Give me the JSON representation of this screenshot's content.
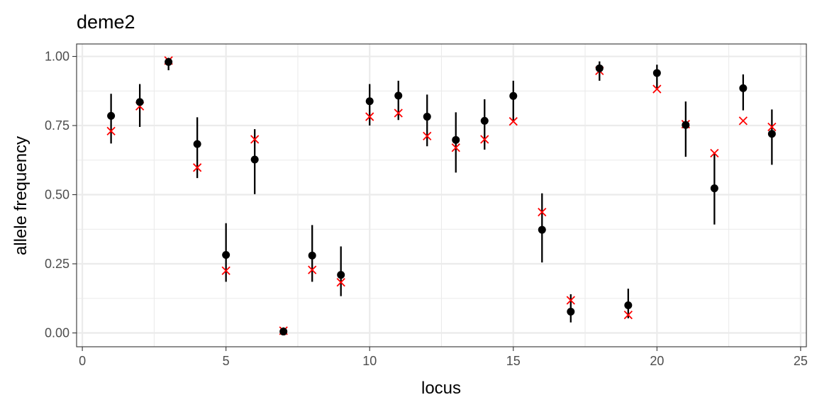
{
  "chart_data": {
    "type": "scatter",
    "title": "deme2",
    "xlabel": "locus",
    "ylabel": "allele frequency",
    "xlim": [
      -0.2,
      25.2
    ],
    "ylim": [
      -0.05,
      1.045
    ],
    "x_ticks": [
      0,
      5,
      10,
      15,
      20,
      25
    ],
    "x_tick_labels": [
      "0",
      "5",
      "10",
      "15",
      "20",
      "25"
    ],
    "y_ticks": [
      0,
      0.25,
      0.5,
      0.75,
      1.0
    ],
    "y_tick_labels": [
      "0.00",
      "0.25",
      "0.50",
      "0.75",
      "1.00"
    ],
    "grid": true,
    "legend": "none",
    "colors": {
      "estimate": "#000000",
      "truth": "#ff0000",
      "grid": "#ebebeb",
      "border": "#333333"
    },
    "series": [
      {
        "kind": "estimate-with-interval",
        "marker": "circle",
        "points": [
          {
            "x": 1,
            "y": 0.785,
            "lo": 0.685,
            "hi": 0.865
          },
          {
            "x": 2,
            "y": 0.835,
            "lo": 0.745,
            "hi": 0.9
          },
          {
            "x": 3,
            "y": 0.98,
            "lo": 0.95,
            "hi": 0.995
          },
          {
            "x": 4,
            "y": 0.683,
            "lo": 0.56,
            "hi": 0.78
          },
          {
            "x": 5,
            "y": 0.282,
            "lo": 0.185,
            "hi": 0.397
          },
          {
            "x": 6,
            "y": 0.627,
            "lo": 0.502,
            "hi": 0.737
          },
          {
            "x": 7,
            "y": 0.005,
            "lo": 0.0,
            "hi": 0.02
          },
          {
            "x": 8,
            "y": 0.28,
            "lo": 0.185,
            "hi": 0.39
          },
          {
            "x": 9,
            "y": 0.21,
            "lo": 0.133,
            "hi": 0.313
          },
          {
            "x": 10,
            "y": 0.838,
            "lo": 0.75,
            "hi": 0.9
          },
          {
            "x": 11,
            "y": 0.858,
            "lo": 0.77,
            "hi": 0.912
          },
          {
            "x": 12,
            "y": 0.782,
            "lo": 0.675,
            "hi": 0.862
          },
          {
            "x": 13,
            "y": 0.698,
            "lo": 0.58,
            "hi": 0.798
          },
          {
            "x": 14,
            "y": 0.767,
            "lo": 0.663,
            "hi": 0.845
          },
          {
            "x": 15,
            "y": 0.857,
            "lo": 0.765,
            "hi": 0.912
          },
          {
            "x": 16,
            "y": 0.373,
            "lo": 0.255,
            "hi": 0.505
          },
          {
            "x": 17,
            "y": 0.077,
            "lo": 0.038,
            "hi": 0.14
          },
          {
            "x": 18,
            "y": 0.957,
            "lo": 0.912,
            "hi": 0.982
          },
          {
            "x": 19,
            "y": 0.1,
            "lo": 0.053,
            "hi": 0.16
          },
          {
            "x": 20,
            "y": 0.94,
            "lo": 0.882,
            "hi": 0.97
          },
          {
            "x": 21,
            "y": 0.752,
            "lo": 0.637,
            "hi": 0.837
          },
          {
            "x": 22,
            "y": 0.523,
            "lo": 0.392,
            "hi": 0.652
          },
          {
            "x": 23,
            "y": 0.885,
            "lo": 0.805,
            "hi": 0.935
          },
          {
            "x": 24,
            "y": 0.72,
            "lo": 0.608,
            "hi": 0.808
          }
        ]
      },
      {
        "kind": "truth",
        "marker": "x",
        "points": [
          {
            "x": 1,
            "y": 0.73
          },
          {
            "x": 2,
            "y": 0.82
          },
          {
            "x": 3,
            "y": 0.985
          },
          {
            "x": 4,
            "y": 0.598
          },
          {
            "x": 5,
            "y": 0.225
          },
          {
            "x": 6,
            "y": 0.7
          },
          {
            "x": 7,
            "y": 0.008
          },
          {
            "x": 8,
            "y": 0.228
          },
          {
            "x": 9,
            "y": 0.183
          },
          {
            "x": 10,
            "y": 0.782
          },
          {
            "x": 11,
            "y": 0.795
          },
          {
            "x": 12,
            "y": 0.712
          },
          {
            "x": 13,
            "y": 0.67
          },
          {
            "x": 14,
            "y": 0.7
          },
          {
            "x": 15,
            "y": 0.765
          },
          {
            "x": 16,
            "y": 0.437
          },
          {
            "x": 17,
            "y": 0.118
          },
          {
            "x": 18,
            "y": 0.948
          },
          {
            "x": 19,
            "y": 0.065
          },
          {
            "x": 20,
            "y": 0.882
          },
          {
            "x": 21,
            "y": 0.755
          },
          {
            "x": 22,
            "y": 0.65
          },
          {
            "x": 23,
            "y": 0.767
          },
          {
            "x": 24,
            "y": 0.745
          }
        ]
      }
    ]
  }
}
